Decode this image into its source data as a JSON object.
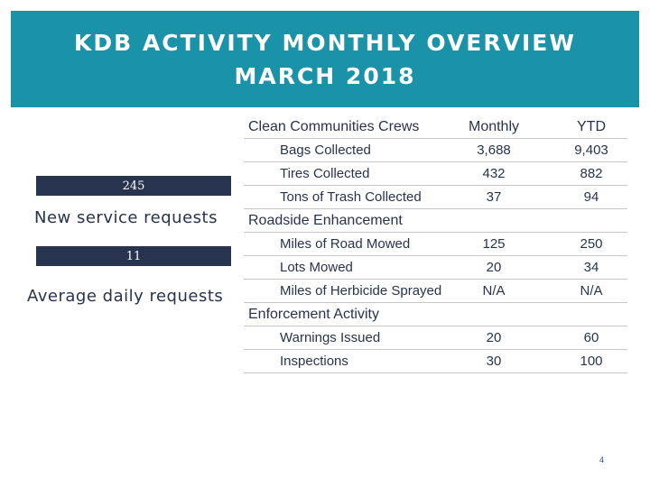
{
  "title": {
    "line1": "KDB ACTIVITY MONTHLY OVERVIEW",
    "line2": "MARCH 2018"
  },
  "stats": [
    {
      "value": "245",
      "label": "New service requests"
    },
    {
      "value": "11",
      "label": "Average daily requests"
    }
  ],
  "table": {
    "header": {
      "section": "Clean Communities Crews",
      "monthly": "Monthly",
      "ytd": "YTD"
    },
    "clean_rows": [
      {
        "label": "Bags Collected",
        "monthly": "3,688",
        "ytd": "9,403"
      },
      {
        "label": "Tires Collected",
        "monthly": "432",
        "ytd": "882"
      },
      {
        "label": "Tons of Trash Collected",
        "monthly": "37",
        "ytd": "94"
      }
    ],
    "roadside_title": "Roadside Enhancement",
    "roadside_rows": [
      {
        "label": "Miles of Road Mowed",
        "monthly": "125",
        "ytd": "250"
      },
      {
        "label": "Lots Mowed",
        "monthly": "20",
        "ytd": "34"
      },
      {
        "label": "Miles of Herbicide Sprayed",
        "monthly": "N/A",
        "ytd": "N/A"
      }
    ],
    "enforcement_title": "Enforcement Activity",
    "enforcement_rows": [
      {
        "label": "Warnings Issued",
        "monthly": "20",
        "ytd": "60"
      },
      {
        "label": "Inspections",
        "monthly": "30",
        "ytd": "100"
      }
    ]
  },
  "page_number": "4",
  "colors": {
    "banner": "#1a93a8",
    "stat_box": "#28334f",
    "text": "#28334f",
    "page_number": "#1a4f9a"
  }
}
